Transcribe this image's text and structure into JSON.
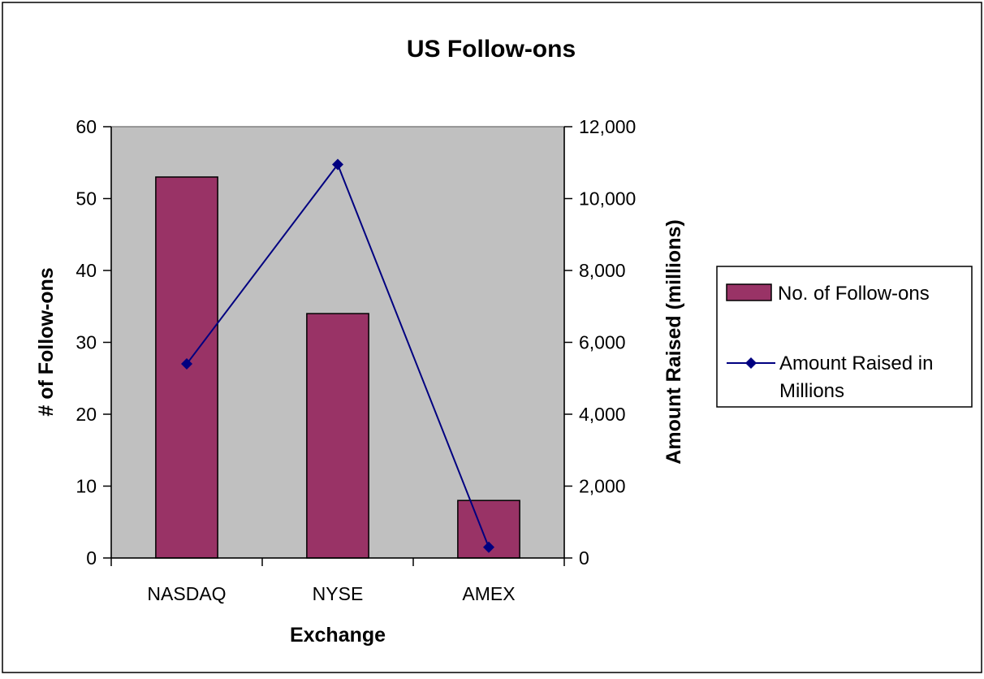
{
  "chart_data": {
    "type": "bar+line",
    "title": "US Follow-ons",
    "xlabel": "Exchange",
    "ylabel": "# of Follow-ons",
    "y2label": "Amount Raised (millions)",
    "categories": [
      "NASDAQ",
      "NYSE",
      "AMEX"
    ],
    "ylim": [
      0,
      60
    ],
    "y2lim": [
      0,
      12000
    ],
    "yticks": [
      "0",
      "10",
      "20",
      "30",
      "40",
      "50",
      "60"
    ],
    "y2ticks": [
      "0",
      "2,000",
      "4,000",
      "6,000",
      "8,000",
      "10,000",
      "12,000"
    ],
    "plot_background": "#c0c0c0",
    "grid": false,
    "legend_placement": "right",
    "series": [
      {
        "name": "No. of Follow-ons",
        "type": "bar",
        "axis": "left",
        "color": "#993366",
        "values": [
          53,
          34,
          8
        ]
      },
      {
        "name": "Amount Raised in Millions",
        "type": "line",
        "axis": "right",
        "color": "#000080",
        "marker": "diamond",
        "values": [
          5400,
          10950,
          300
        ]
      }
    ]
  }
}
